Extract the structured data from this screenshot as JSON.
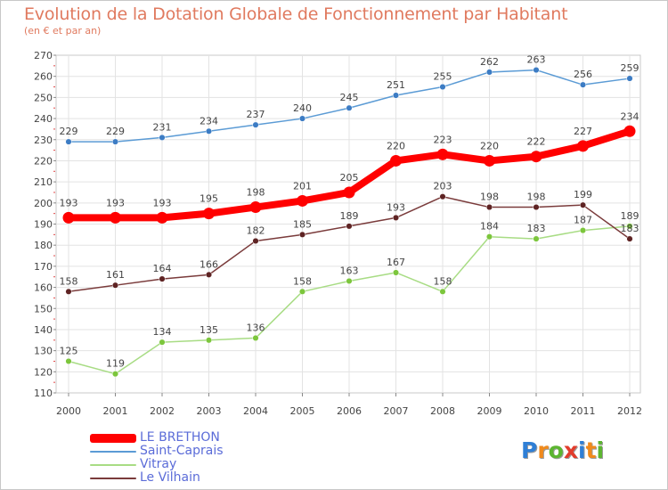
{
  "title": "Evolution de la Dotation Globale de Fonctionnement par Habitant",
  "subtitle": "(en € et par an)",
  "logo": {
    "text": "Proxiti",
    "colors": [
      "#2f7fd6",
      "#f08a1c",
      "#5cb531",
      "#e23c2c",
      "#2f7fd6",
      "#f08a1c",
      "#5cb531"
    ]
  },
  "chart_data": {
    "type": "line",
    "x": [
      "2000",
      "2001",
      "2002",
      "2003",
      "2004",
      "2005",
      "2006",
      "2007",
      "2008",
      "2009",
      "2010",
      "2011",
      "2012"
    ],
    "ylim": [
      110,
      270
    ],
    "yticks": [
      110,
      120,
      130,
      140,
      150,
      160,
      170,
      180,
      190,
      200,
      210,
      220,
      230,
      240,
      250,
      260,
      270
    ],
    "grid": true,
    "legend_position": "bottom-left",
    "series": [
      {
        "name": "Saint-Caprais",
        "color": "#5b9bd5",
        "marker": "#3c7cc4",
        "values": [
          229,
          229,
          231,
          234,
          237,
          240,
          245,
          251,
          255,
          262,
          263,
          256,
          259
        ]
      },
      {
        "name": "Vitray",
        "color": "#a8dc84",
        "marker": "#7cc63c",
        "values": [
          125,
          119,
          134,
          135,
          136,
          158,
          163,
          167,
          158,
          184,
          183,
          187,
          189
        ]
      },
      {
        "name": "Le Vilhain",
        "color": "#7a3b3b",
        "marker": "#5e2323",
        "values": [
          158,
          161,
          164,
          166,
          182,
          185,
          189,
          193,
          203,
          198,
          198,
          199,
          183
        ]
      },
      {
        "name": "LE BRETHON",
        "color": "#ff0000",
        "marker": "#ff0000",
        "values": [
          193,
          193,
          193,
          195,
          198,
          201,
          205,
          220,
          223,
          220,
          222,
          227,
          234
        ]
      }
    ],
    "legend_order": [
      "LE BRETHON",
      "Saint-Caprais",
      "Vitray",
      "Le Vilhain"
    ]
  }
}
